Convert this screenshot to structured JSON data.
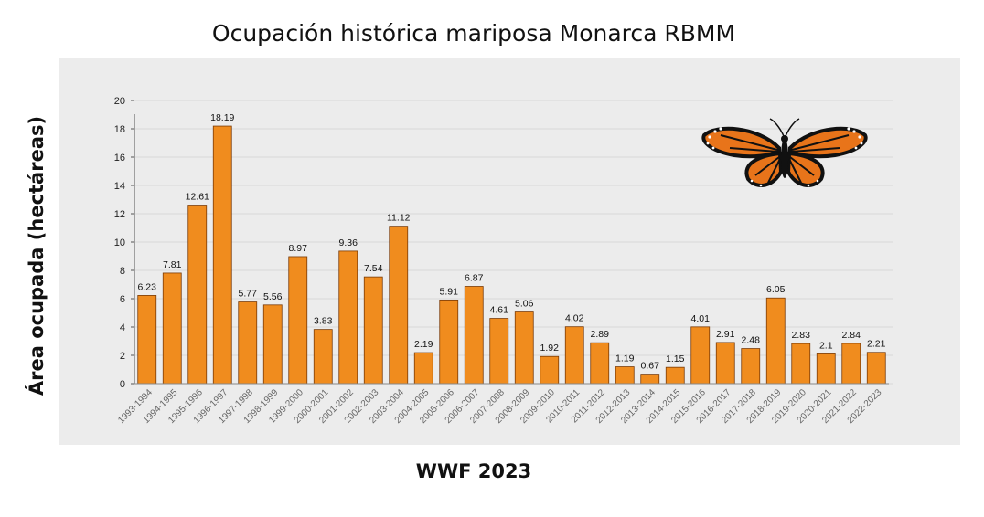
{
  "chart_data": {
    "type": "bar",
    "title": "Ocupación histórica mariposa Monarca RBMM",
    "ylabel": "Área ocupada (hectáreas)",
    "xlabel": "",
    "ylim": [
      0,
      20
    ],
    "yticks": [
      0,
      2,
      4,
      6,
      8,
      10,
      12,
      14,
      16,
      18,
      20
    ],
    "categories": [
      "1993-1994",
      "1994-1995",
      "1995-1996",
      "1996-1997",
      "1997-1998",
      "1998-1999",
      "1999-2000",
      "2000-2001",
      "2001-2002",
      "2002-2003",
      "2003-2004",
      "2004-2005",
      "2005-2006",
      "2006-2007",
      "2007-2008",
      "2008-2009",
      "2009-2010",
      "2010-2011",
      "2011-2012",
      "2012-2013",
      "2013-2014",
      "2014-2015",
      "2015-2016",
      "2016-2017",
      "2017-2018",
      "2018-2019",
      "2019-2020",
      "2020-2021",
      "2021-2022",
      "2022-2023"
    ],
    "values": [
      6.23,
      7.81,
      12.61,
      18.19,
      5.77,
      5.56,
      8.97,
      3.83,
      9.36,
      7.54,
      11.12,
      2.19,
      5.91,
      6.87,
      4.61,
      5.06,
      1.92,
      4.02,
      2.89,
      1.19,
      0.67,
      1.15,
      4.01,
      2.91,
      2.48,
      6.05,
      2.83,
      2.1,
      2.84,
      2.21
    ],
    "data_labels": [
      "6.23",
      "7.81",
      "12.61",
      "18.19",
      "5.77",
      "5.56",
      "8.97",
      "3.83",
      "9.36",
      "7.54",
      "11.12",
      "2.19",
      "5.91",
      "6.87",
      "4.61",
      "5.06",
      "1.92",
      "4.02",
      "2.89",
      "1.19",
      "0.67",
      "1.15",
      "4.01",
      "2.91",
      "2.48",
      "6.05",
      "2.83",
      "2.1",
      "2.84",
      "2.21"
    ],
    "bar_color": "#f08c1e",
    "bar_edge_color": "#7a3a05",
    "grid": true,
    "legend": "none",
    "illustration": "monarch-butterfly"
  },
  "source_text": "WWF 2023",
  "colors": {
    "panel_bg": "#ececec",
    "gridline": "#d8d8d8"
  }
}
